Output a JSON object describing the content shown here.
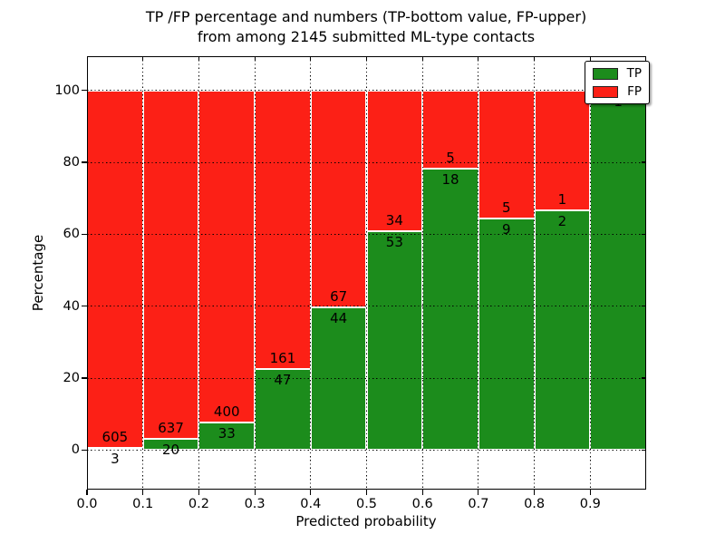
{
  "chart_data": {
    "type": "bar",
    "stacked": true,
    "title_line1": "TP /FP percentage and numbers (TP-bottom value, FP-upper)",
    "title_line2": "from among 2145 submitted ML-type contacts",
    "xlabel": "Predicted probability",
    "ylabel": "Percentage",
    "x_ticks": [
      "0.0",
      "0.1",
      "0.2",
      "0.3",
      "0.4",
      "0.5",
      "0.6",
      "0.7",
      "0.8",
      "0.9"
    ],
    "y_ticks": [
      "0",
      "20",
      "40",
      "60",
      "80",
      "100"
    ],
    "xlim": [
      0.0,
      1.0
    ],
    "ylim": [
      -11.0,
      109.5
    ],
    "grid": "dotted both axes",
    "legend_position": "upper right",
    "legend": [
      {
        "label": "TP",
        "color": "#1c8c1c"
      },
      {
        "label": "FP",
        "color": "#fc2016"
      }
    ],
    "colors": {
      "tp": "#1c8c1c",
      "fp": "#fc2016",
      "bar_edge": "#ffffff"
    },
    "total_contacts": 2145,
    "bins": [
      {
        "range": [
          0.0,
          0.1
        ],
        "tp": 3,
        "fp": 605,
        "tp_pct": 0.49
      },
      {
        "range": [
          0.1,
          0.2
        ],
        "tp": 20,
        "fp": 637,
        "tp_pct": 3.04
      },
      {
        "range": [
          0.2,
          0.3
        ],
        "tp": 33,
        "fp": 400,
        "tp_pct": 7.62
      },
      {
        "range": [
          0.3,
          0.4
        ],
        "tp": 47,
        "fp": 161,
        "tp_pct": 22.6
      },
      {
        "range": [
          0.4,
          0.5
        ],
        "tp": 44,
        "fp": 67,
        "tp_pct": 39.64
      },
      {
        "range": [
          0.5,
          0.6
        ],
        "tp": 53,
        "fp": 34,
        "tp_pct": 60.92
      },
      {
        "range": [
          0.6,
          0.7
        ],
        "tp": 18,
        "fp": 5,
        "tp_pct": 78.26
      },
      {
        "range": [
          0.7,
          0.8
        ],
        "tp": 9,
        "fp": 5,
        "tp_pct": 64.29
      },
      {
        "range": [
          0.8,
          0.9
        ],
        "tp": 2,
        "fp": 1,
        "tp_pct": 66.67
      },
      {
        "range": [
          0.9,
          1.0
        ],
        "tp": 1,
        "fp": 0,
        "tp_pct": 100.0
      }
    ]
  }
}
